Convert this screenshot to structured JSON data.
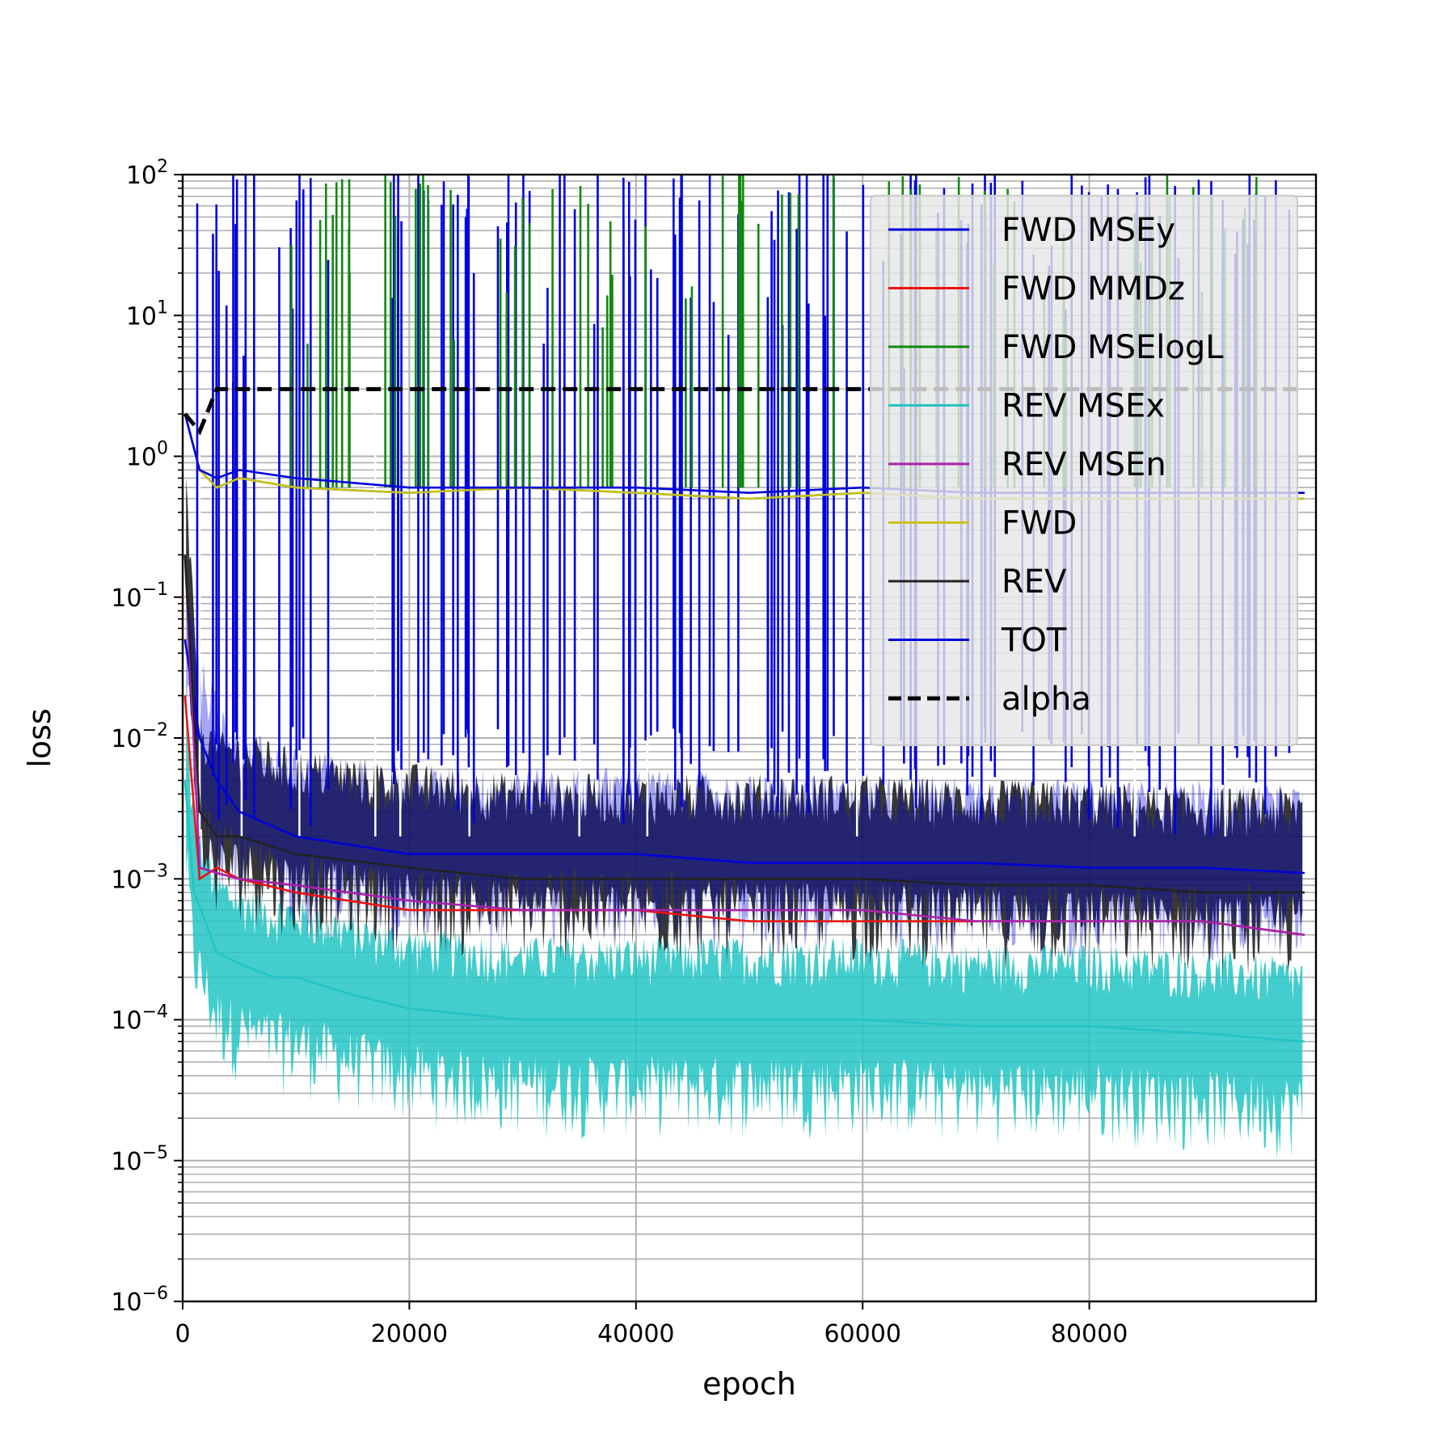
{
  "chart_data": {
    "type": "line",
    "title": "",
    "xlabel": "epoch",
    "ylabel": "loss",
    "xlim": [
      0,
      100000
    ],
    "ylim": [
      1e-06,
      100
    ],
    "yscale": "log",
    "grid": true,
    "grid_minor": true,
    "legend_position": "upper right",
    "x_ticks": [
      0,
      20000,
      40000,
      60000,
      80000
    ],
    "x_tick_labels": [
      "0",
      "20000",
      "40000",
      "60000",
      "80000"
    ],
    "y_ticks": [
      1e-06,
      1e-05,
      0.0001,
      0.001,
      0.01,
      0.1,
      1,
      10,
      100
    ],
    "y_tick_labels": [
      {
        "base": "10",
        "exp": "−6"
      },
      {
        "base": "10",
        "exp": "−5"
      },
      {
        "base": "10",
        "exp": "−4"
      },
      {
        "base": "10",
        "exp": "−3"
      },
      {
        "base": "10",
        "exp": "−2"
      },
      {
        "base": "10",
        "exp": "−1"
      },
      {
        "base": "10",
        "exp": "0"
      },
      {
        "base": "10",
        "exp": "1"
      },
      {
        "base": "10",
        "exp": "2"
      }
    ],
    "spike_epochs": [
      1500,
      5200,
      10300,
      17000,
      19200,
      25300,
      35000,
      41000,
      59500,
      84000,
      92000
    ],
    "series": [
      {
        "name": "FWD MSEy",
        "color": "#0000dd",
        "style": "solid",
        "x": [
          200,
          1500,
          3000,
          5000,
          10000,
          20000,
          30000,
          40000,
          50000,
          60000,
          70000,
          80000,
          90000,
          99000
        ],
        "y": [
          0.05,
          0.01,
          0.005,
          0.003,
          0.002,
          0.0015,
          0.0015,
          0.0015,
          0.0013,
          0.0013,
          0.0013,
          0.0012,
          0.0012,
          0.0011
        ]
      },
      {
        "name": "FWD MMDz",
        "color": "#ee1111",
        "style": "solid",
        "x": [
          200,
          1500,
          3000,
          5000,
          10000,
          20000,
          30000,
          40000,
          50000,
          60000,
          70000,
          80000,
          90000,
          99000
        ],
        "y": [
          0.02,
          0.001,
          0.0012,
          0.001,
          0.0008,
          0.0006,
          0.0006,
          0.0006,
          0.0005,
          0.0005,
          0.0005,
          0.0005,
          0.0005,
          0.0004
        ]
      },
      {
        "name": "FWD MSElogL",
        "color": "#118811",
        "style": "solid",
        "x": [
          200,
          1500,
          3000,
          5000,
          10000,
          20000,
          30000,
          40000,
          50000,
          60000,
          70000,
          80000,
          90000,
          99000
        ],
        "y": [
          2.0,
          0.8,
          0.6,
          0.7,
          0.6,
          0.55,
          0.6,
          0.55,
          0.5,
          0.55,
          0.5,
          0.5,
          0.5,
          0.5
        ]
      },
      {
        "name": "REV MSEx",
        "color": "#22c4c4",
        "style": "solid",
        "x": [
          200,
          1000,
          2000,
          3000,
          5000,
          8000,
          10000,
          15000,
          20000,
          30000,
          40000,
          50000,
          60000,
          70000,
          80000,
          90000,
          99000
        ],
        "y": [
          0.005,
          0.0008,
          0.0005,
          0.0003,
          0.00025,
          0.0002,
          0.0002,
          0.00015,
          0.00012,
          0.0001,
          0.0001,
          0.0001,
          0.0001,
          9e-05,
          9e-05,
          8e-05,
          7e-05
        ]
      },
      {
        "name": "REV MSEn",
        "color": "#aa22aa",
        "style": "solid",
        "x": [
          200,
          1500,
          3000,
          5000,
          10000,
          20000,
          30000,
          40000,
          50000,
          60000,
          70000,
          80000,
          90000,
          99000
        ],
        "y": [
          0.2,
          0.0012,
          0.0011,
          0.001,
          0.0009,
          0.0007,
          0.0006,
          0.0006,
          0.0006,
          0.0006,
          0.0005,
          0.0005,
          0.0005,
          0.0004
        ]
      },
      {
        "name": "FWD",
        "color": "#c8c020",
        "style": "solid",
        "x": [
          200,
          1500,
          3000,
          5000,
          10000,
          20000,
          30000,
          40000,
          50000,
          60000,
          70000,
          80000,
          90000,
          99000
        ],
        "y": [
          2.0,
          0.8,
          0.6,
          0.7,
          0.6,
          0.55,
          0.6,
          0.55,
          0.5,
          0.55,
          0.5,
          0.5,
          0.5,
          0.5
        ]
      },
      {
        "name": "REV",
        "color": "#222222",
        "style": "solid",
        "x": [
          200,
          1500,
          3000,
          5000,
          10000,
          20000,
          30000,
          40000,
          50000,
          60000,
          70000,
          80000,
          90000,
          99000
        ],
        "y": [
          0.2,
          0.003,
          0.002,
          0.002,
          0.0015,
          0.0012,
          0.001,
          0.001,
          0.001,
          0.001,
          0.0009,
          0.0009,
          0.0008,
          0.0008
        ]
      },
      {
        "name": "TOT",
        "color": "#0000dd",
        "style": "solid",
        "x": [
          200,
          1500,
          3000,
          5000,
          10000,
          20000,
          30000,
          40000,
          50000,
          60000,
          70000,
          80000,
          90000,
          99000
        ],
        "y": [
          2.0,
          0.8,
          0.7,
          0.8,
          0.7,
          0.6,
          0.6,
          0.6,
          0.55,
          0.6,
          0.55,
          0.55,
          0.55,
          0.55
        ]
      },
      {
        "name": "alpha",
        "color": "#000000",
        "style": "dashed",
        "x": [
          200,
          1500,
          3000,
          5000,
          10000,
          20000,
          30000,
          40000,
          50000,
          60000,
          70000,
          80000,
          90000,
          99000
        ],
        "y": [
          2.0,
          1.5,
          3.0,
          3.0,
          3.0,
          3.0,
          3.0,
          3.0,
          3.0,
          3.0,
          3.0,
          3.0,
          3.0,
          3.0
        ]
      }
    ]
  }
}
